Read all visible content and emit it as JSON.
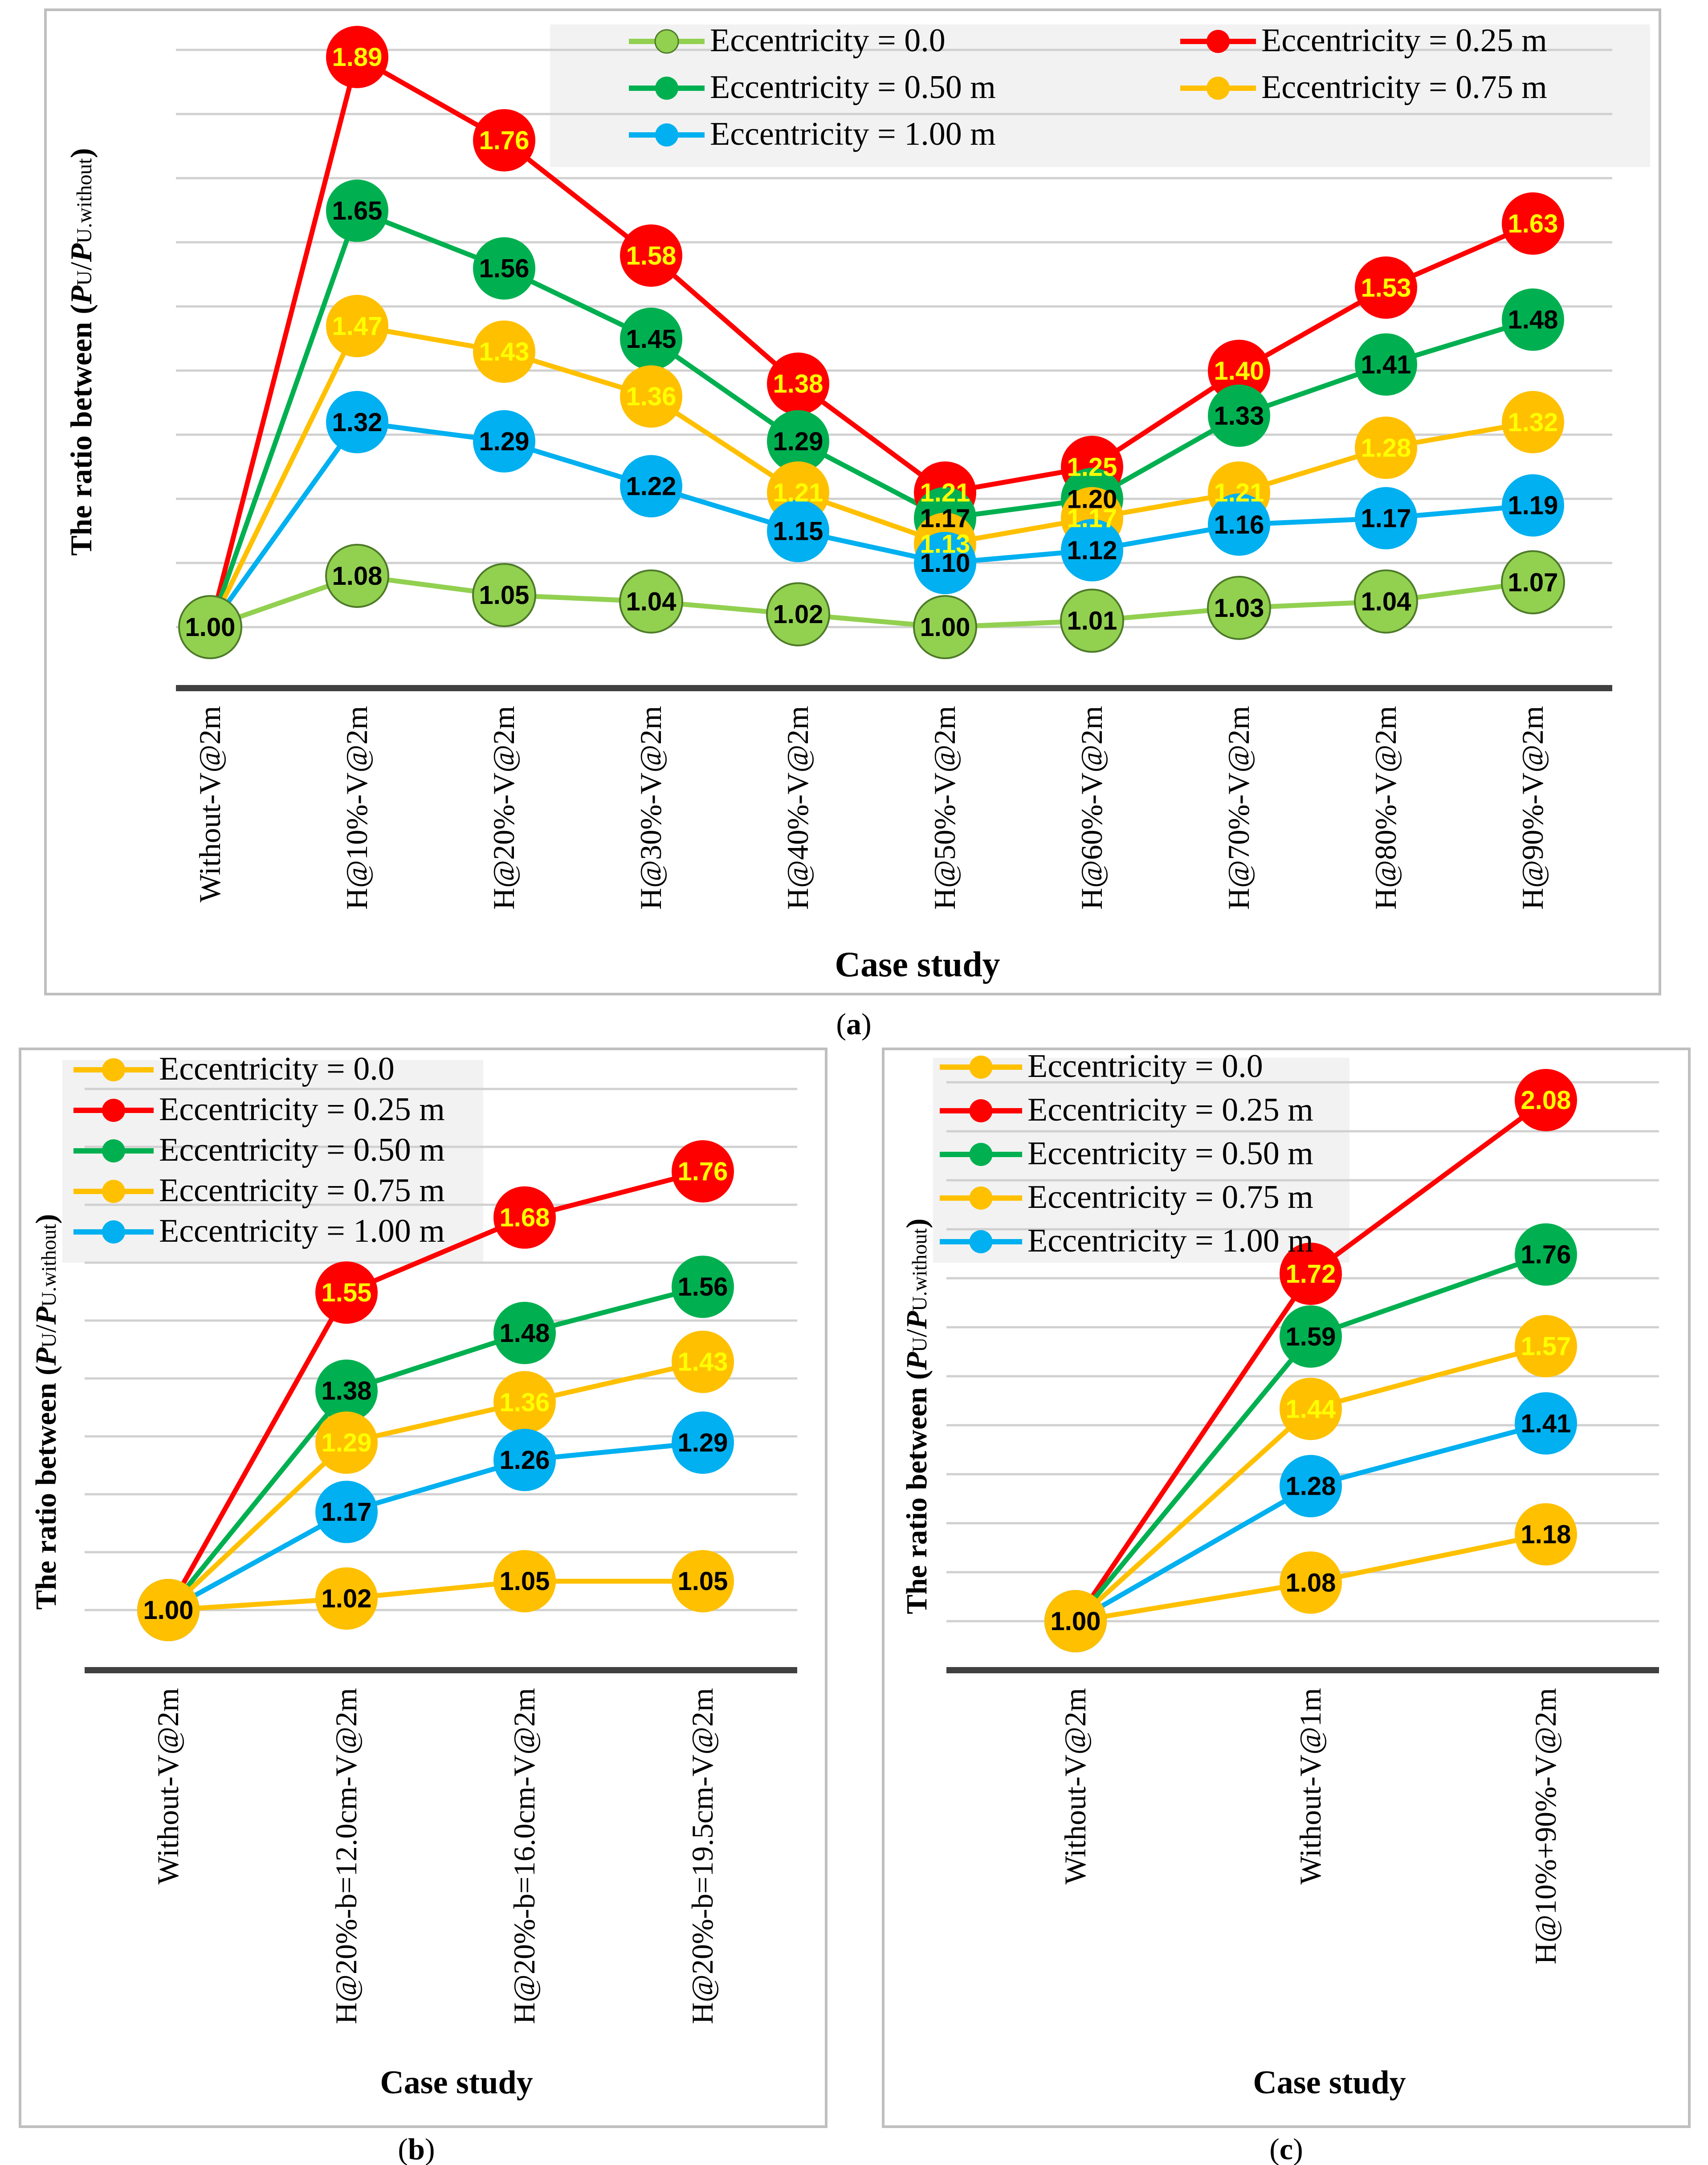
{
  "colors": {
    "e0a": "#92d050",
    "e0bc": "#ffc000",
    "e025": "#ff0000",
    "e050": "#00b050",
    "e075": "#ffc000",
    "e100": "#00b0f0"
  },
  "chart_data": [
    {
      "id": "a",
      "type": "line",
      "panel_label": "a",
      "xlabel": "Case study",
      "ylabel": "The ratio between (PU/PU.without)",
      "ylabel_parts": {
        "prefix": "The ratio between (",
        "p1": "P",
        "s1": "U",
        "slash": "/",
        "p2": "P",
        "s2": "U.without",
        "suffix": ")"
      },
      "ylim": [
        0.9,
        2.0
      ],
      "categories": [
        "Without-V@2m",
        "H@10%-V@2m",
        "H@20%-V@2m",
        "H@30%-V@2m",
        "H@40%-V@2m",
        "H@50%-V@2m",
        "H@60%-V@2m",
        "H@70%-V@2m",
        "H@80%-V@2m",
        "H@90%-V@2m"
      ],
      "series": [
        {
          "name": "Eccentricity = 0.0",
          "color_key": "e0a",
          "label_color": "#000000",
          "border": "#4d7a28",
          "values": [
            1.0,
            1.08,
            1.05,
            1.04,
            1.02,
            1.0,
            1.01,
            1.03,
            1.04,
            1.07
          ],
          "labels": [
            "1.00",
            "1.08",
            "1.05",
            "1.04",
            "1.02",
            "1.00",
            "1.01",
            "1.03",
            "1.04",
            "1.07"
          ]
        },
        {
          "name": "Eccentricity = 0.25 m",
          "color_key": "e025",
          "label_color": "#ffff00",
          "border": "",
          "values": [
            1.0,
            1.89,
            1.76,
            1.58,
            1.38,
            1.21,
            1.25,
            1.4,
            1.53,
            1.63
          ],
          "labels": [
            "1.00",
            "1.89",
            "1.76",
            "1.58",
            "1.38",
            "1.21",
            "1.25",
            "1.40",
            "1.53",
            "1.63"
          ]
        },
        {
          "name": "Eccentricity = 0.50 m",
          "color_key": "e050",
          "label_color": "#000000",
          "border": "",
          "values": [
            1.0,
            1.65,
            1.56,
            1.45,
            1.29,
            1.17,
            1.2,
            1.33,
            1.41,
            1.48
          ],
          "labels": [
            "1.00",
            "1.65",
            "1.56",
            "1.45",
            "1.29",
            "1.17",
            "1.20",
            "1.33",
            "1.41",
            "1.48"
          ]
        },
        {
          "name": "Eccentricity = 0.75 m",
          "color_key": "e075",
          "label_color": "#ffff00",
          "border": "",
          "values": [
            1.0,
            1.47,
            1.43,
            1.36,
            1.21,
            1.13,
            1.17,
            1.21,
            1.28,
            1.32
          ],
          "labels": [
            "1.00",
            "1.47",
            "1.43",
            "1.36",
            "1.21",
            "1.13",
            "1.17",
            "1.21",
            "1.28",
            "1.32"
          ]
        },
        {
          "name": "Eccentricity = 1.00 m",
          "color_key": "e100",
          "label_color": "#000000",
          "border": "",
          "values": [
            1.0,
            1.32,
            1.29,
            1.22,
            1.15,
            1.1,
            1.12,
            1.16,
            1.17,
            1.19
          ],
          "labels": [
            "1.00",
            "1.32",
            "1.29",
            "1.22",
            "1.15",
            "1.10",
            "1.12",
            "1.16",
            "1.17",
            "1.19"
          ]
        }
      ],
      "legend": "top-right"
    },
    {
      "id": "b",
      "type": "line",
      "panel_label": "b",
      "xlabel": "Case study",
      "ylabel": "The ratio between (PU/PU.without)",
      "ylabel_parts": {
        "prefix": "The ratio between (",
        "p1": "P",
        "s1": "U",
        "slash": "/",
        "p2": "P",
        "s2": "U.without",
        "suffix": ")"
      },
      "ylim": [
        0.9,
        2.0
      ],
      "categories": [
        "Without-V@2m",
        "H@20%-b=12.0cm-V@2m",
        "H@20%-b=16.0cm-V@2m",
        "H@20%-b=19.5cm-V@2m"
      ],
      "series": [
        {
          "name": "Eccentricity = 0.0",
          "color_key": "e0bc",
          "label_color": "#000000",
          "border": "",
          "values": [
            1.0,
            1.02,
            1.05,
            1.05
          ],
          "labels": [
            "1.00",
            "1.02",
            "1.05",
            "1.05"
          ]
        },
        {
          "name": "Eccentricity = 0.25 m",
          "color_key": "e025",
          "label_color": "#ffff00",
          "border": "",
          "values": [
            1.0,
            1.55,
            1.68,
            1.76
          ],
          "labels": [
            "1.00",
            "1.55",
            "1.68",
            "1.76"
          ]
        },
        {
          "name": "Eccentricity = 0.50 m",
          "color_key": "e050",
          "label_color": "#000000",
          "border": "",
          "values": [
            1.0,
            1.38,
            1.48,
            1.56
          ],
          "labels": [
            "1.00",
            "1.38",
            "1.48",
            "1.56"
          ]
        },
        {
          "name": "Eccentricity = 0.75 m",
          "color_key": "e075",
          "label_color": "#ffff00",
          "border": "",
          "values": [
            1.0,
            1.29,
            1.36,
            1.43
          ],
          "labels": [
            "1.00",
            "1.29",
            "1.36",
            "1.43"
          ]
        },
        {
          "name": "Eccentricity = 1.00 m",
          "color_key": "e100",
          "label_color": "#000000",
          "border": "",
          "values": [
            1.0,
            1.17,
            1.26,
            1.29
          ],
          "labels": [
            "1.00",
            "1.17",
            "1.26",
            "1.29"
          ]
        }
      ],
      "legend": "top-left"
    },
    {
      "id": "c",
      "type": "line",
      "panel_label": "c",
      "xlabel": "Case study",
      "ylabel": "The ratio between (PU/PU.without)",
      "ylabel_parts": {
        "prefix": "The ratio between (",
        "p1": "P",
        "s1": "U",
        "slash": "/",
        "p2": "P",
        "s2": "U.without",
        "suffix": ")"
      },
      "ylim": [
        0.85,
        2.2
      ],
      "categories": [
        "Without-V@2m",
        "Without-V@1m",
        "H@10%+90%-V@2m"
      ],
      "series": [
        {
          "name": "Eccentricity = 0.0",
          "color_key": "e0bc",
          "label_color": "#000000",
          "border": "",
          "values": [
            1.0,
            1.08,
            1.18
          ],
          "labels": [
            "1.00",
            "1.08",
            "1.18"
          ]
        },
        {
          "name": "Eccentricity = 0.25 m",
          "color_key": "e025",
          "label_color": "#ffff00",
          "border": "",
          "values": [
            1.0,
            1.72,
            2.08
          ],
          "labels": [
            "1.00",
            "1.72",
            "2.08"
          ]
        },
        {
          "name": "Eccentricity = 0.50 m",
          "color_key": "e050",
          "label_color": "#000000",
          "border": "",
          "values": [
            1.0,
            1.59,
            1.76
          ],
          "labels": [
            "1.00",
            "1.59",
            "1.76"
          ]
        },
        {
          "name": "Eccentricity = 0.75 m",
          "color_key": "e075",
          "label_color": "#ffff00",
          "border": "",
          "values": [
            1.0,
            1.44,
            1.57
          ],
          "labels": [
            "1.00",
            "1.44",
            "1.57"
          ]
        },
        {
          "name": "Eccentricity = 1.00 m",
          "color_key": "e100",
          "label_color": "#000000",
          "border": "",
          "values": [
            1.0,
            1.28,
            1.41
          ],
          "labels": [
            "1.00",
            "1.28",
            "1.41"
          ]
        }
      ],
      "legend": "top-left"
    }
  ]
}
